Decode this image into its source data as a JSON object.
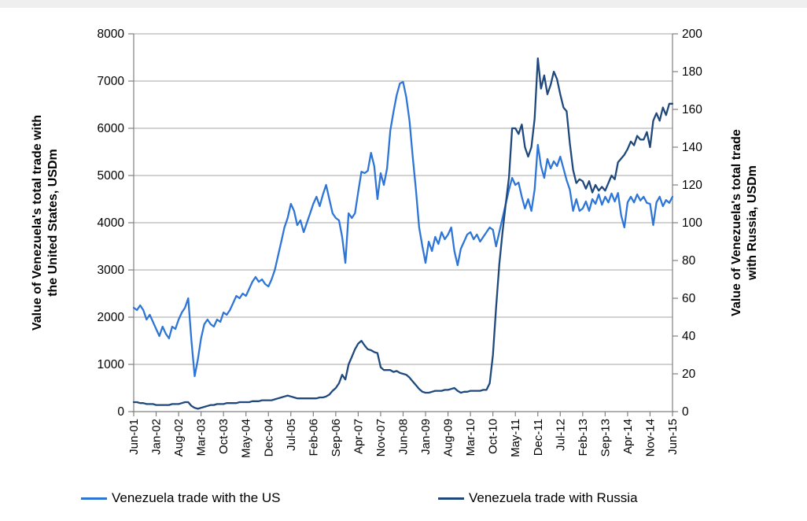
{
  "page": {
    "background": "#ffffff",
    "top_strip_color": "#efefef"
  },
  "chart_data": {
    "type": "line",
    "title": "",
    "grid": true,
    "legend_position": "bottom",
    "x_axis": {
      "start": "Jun-01",
      "end": "Jun-15",
      "n_points": 169,
      "tick_every_months": 7,
      "tick_labels": [
        "Jun-01",
        "Jan-02",
        "Aug-02",
        "Mar-03",
        "Oct-03",
        "May-04",
        "Dec-04",
        "Jul-05",
        "Feb-06",
        "Sep-06",
        "Apr-07",
        "Nov-07",
        "Jun-08",
        "Jan-09",
        "Aug-09",
        "Mar-10",
        "Oct-10",
        "May-11",
        "Dec-11",
        "Jul-12",
        "Feb-13",
        "Sep-13",
        "Apr-14",
        "Nov-14",
        "Jun-15"
      ]
    },
    "left_axis": {
      "title_line1": "Value of Venezuela's total trade with",
      "title_line2": "the United States, USDm",
      "min": 0,
      "max": 8000,
      "step": 1000,
      "tick_labels": [
        "0",
        "1000",
        "2000",
        "3000",
        "4000",
        "5000",
        "6000",
        "7000",
        "8000"
      ]
    },
    "right_axis": {
      "title_line1": "Value of Venezuela's total trade",
      "title_line2": "with Russia, USDm",
      "min": 0,
      "max": 200,
      "step": 20,
      "tick_labels": [
        "0",
        "20",
        "40",
        "60",
        "80",
        "100",
        "120",
        "140",
        "160",
        "180",
        "200"
      ]
    },
    "colors": {
      "grid": "#a6a6a6",
      "axis": "#808080",
      "text": "#000000"
    },
    "series": [
      {
        "name": "Venezuela trade with the US",
        "axis": "left",
        "color": "#2e75d8",
        "values": [
          2200,
          2150,
          2250,
          2150,
          1950,
          2050,
          1900,
          1750,
          1600,
          1800,
          1650,
          1550,
          1800,
          1750,
          1950,
          2100,
          2200,
          2400,
          1500,
          750,
          1100,
          1550,
          1850,
          1950,
          1850,
          1800,
          1950,
          1900,
          2100,
          2050,
          2150,
          2300,
          2450,
          2400,
          2500,
          2450,
          2600,
          2750,
          2850,
          2750,
          2800,
          2700,
          2650,
          2800,
          3000,
          3300,
          3600,
          3900,
          4100,
          4400,
          4250,
          3950,
          4050,
          3800,
          4000,
          4200,
          4400,
          4550,
          4350,
          4600,
          4800,
          4500,
          4200,
          4100,
          4050,
          3700,
          3150,
          4200,
          4100,
          4200,
          4650,
          5080,
          5050,
          5100,
          5480,
          5200,
          4500,
          5050,
          4800,
          5150,
          5950,
          6350,
          6700,
          6950,
          6980,
          6650,
          6150,
          5400,
          4700,
          3900,
          3500,
          3150,
          3600,
          3400,
          3700,
          3550,
          3800,
          3650,
          3750,
          3900,
          3400,
          3100,
          3450,
          3600,
          3750,
          3800,
          3650,
          3750,
          3600,
          3700,
          3800,
          3900,
          3850,
          3500,
          3800,
          4100,
          4400,
          4700,
          4950,
          4800,
          4850,
          4550,
          4300,
          4500,
          4250,
          4700,
          5650,
          5200,
          4950,
          5350,
          5150,
          5300,
          5200,
          5400,
          5150,
          4900,
          4700,
          4250,
          4500,
          4250,
          4300,
          4450,
          4250,
          4500,
          4400,
          4600,
          4380,
          4550,
          4430,
          4620,
          4450,
          4630,
          4150,
          3900,
          4430,
          4550,
          4430,
          4600,
          4470,
          4550,
          4420,
          4400,
          3950,
          4430,
          4550,
          4350,
          4480,
          4420,
          4550
        ]
      },
      {
        "name": "Venezuela trade with Russia",
        "axis": "right",
        "color": "#1f497d",
        "values": [
          5,
          5,
          4.5,
          4.5,
          4,
          4,
          4,
          3.5,
          3.5,
          3.5,
          3.5,
          3.5,
          4,
          4,
          4,
          4.5,
          5,
          5,
          3,
          2,
          1.5,
          2,
          2.5,
          3,
          3.5,
          3.5,
          4,
          4,
          4,
          4.5,
          4.5,
          4.5,
          4.5,
          5,
          5,
          5,
          5,
          5.5,
          5.5,
          5.5,
          6,
          6,
          6,
          6,
          6.5,
          7,
          7.5,
          8,
          8.5,
          8,
          7.5,
          7,
          7,
          7,
          7,
          7,
          7,
          7,
          7.5,
          7.5,
          8,
          9,
          11,
          12.5,
          15,
          19.5,
          17,
          25,
          29,
          33,
          36,
          37.5,
          35,
          33,
          32.5,
          31.5,
          31,
          23.5,
          22,
          22,
          22,
          21,
          21.5,
          20.5,
          20,
          19.5,
          18,
          16,
          14,
          12,
          10.5,
          10,
          10,
          10.5,
          11,
          11,
          11,
          11.5,
          11.5,
          12,
          12.5,
          11,
          10,
          10.5,
          10.5,
          11,
          11,
          11,
          11,
          11.5,
          11.5,
          15,
          30,
          55,
          78,
          95,
          110,
          124,
          150,
          150,
          147,
          152,
          140,
          135,
          140,
          155,
          187,
          171,
          178,
          168,
          173,
          180,
          176,
          168,
          161,
          159,
          142,
          128,
          121,
          123,
          122,
          118,
          122,
          116,
          120,
          117,
          119,
          117,
          121,
          125,
          123,
          132,
          134,
          136,
          139,
          143,
          141,
          146,
          144,
          144,
          148,
          140,
          154,
          158,
          154,
          161,
          157,
          163,
          163
        ]
      }
    ]
  }
}
